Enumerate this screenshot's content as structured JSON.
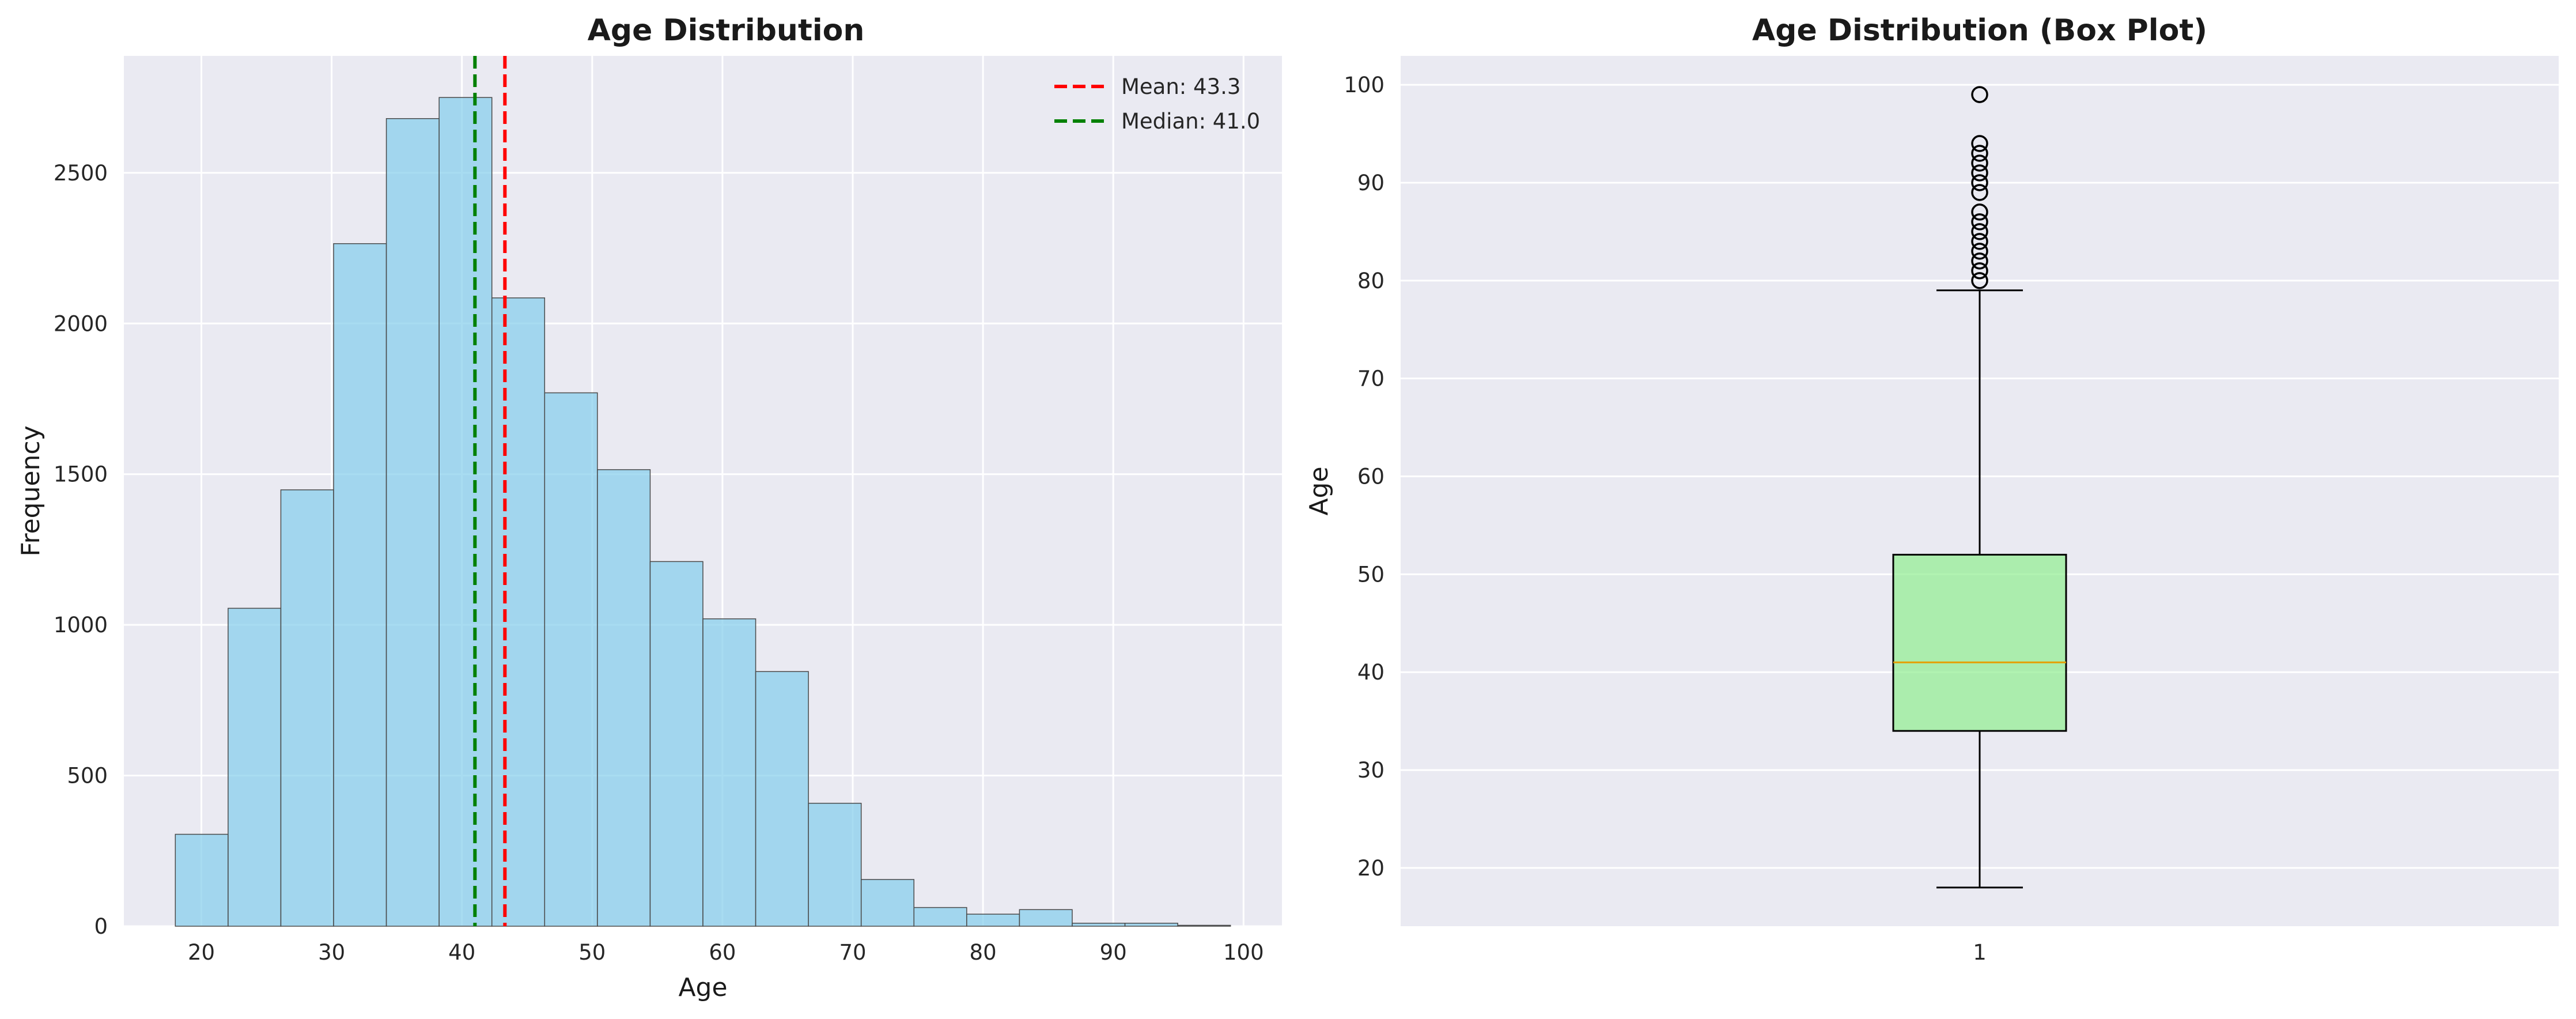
{
  "colors": {
    "panel_bg": "#EAEAF2",
    "grid": "#FFFFFF",
    "hist_fill": "#87CEEB",
    "hist_edge": "#4a4a4a",
    "mean_line": "#FF0000",
    "median_line": "#008000",
    "box_fill": "#90EE90",
    "box_median": "#E69F00",
    "box_edge": "#000000"
  },
  "chart_data": [
    {
      "type": "bar",
      "subtype": "histogram",
      "title": "Age Distribution",
      "xlabel": "Age",
      "ylabel": "Frequency",
      "xlim": [
        14.05,
        102.95
      ],
      "ylim": [
        0,
        2888
      ],
      "xticks": [
        20,
        30,
        40,
        50,
        60,
        70,
        80,
        90,
        100
      ],
      "yticks": [
        0,
        500,
        1000,
        1500,
        2000,
        2500
      ],
      "bin_edges": [
        18.0,
        22.05,
        26.1,
        30.15,
        34.2,
        38.25,
        42.3,
        46.35,
        50.4,
        54.45,
        58.5,
        62.55,
        66.6,
        70.65,
        74.7,
        78.75,
        82.8,
        86.85,
        90.9,
        94.95,
        99.0
      ],
      "values": [
        305,
        1055,
        1448,
        2265,
        2680,
        2750,
        2085,
        1770,
        1515,
        1210,
        1020,
        845,
        408,
        155,
        62,
        40,
        55,
        10,
        10,
        3
      ],
      "grid": true,
      "legend": {
        "placement": "upper right",
        "entries": [
          {
            "label": "Mean: 43.3",
            "value": 43.3,
            "color": "#FF0000",
            "style": "dashed"
          },
          {
            "label": "Median: 41.0",
            "value": 41.0,
            "color": "#008000",
            "style": "dashed"
          }
        ]
      }
    },
    {
      "type": "box",
      "title": "Age Distribution (Box Plot)",
      "xlabel": "",
      "ylabel": "Age",
      "ylim": [
        14.05,
        102.95
      ],
      "yticks": [
        20,
        30,
        40,
        50,
        60,
        70,
        80,
        90,
        100
      ],
      "categories": [
        "1"
      ],
      "box": {
        "whisker_low": 18,
        "q1": 34,
        "median": 41,
        "q3": 52,
        "whisker_high": 79,
        "outliers": [
          80,
          81,
          82,
          83,
          84,
          85,
          86,
          87,
          89,
          90,
          91,
          92,
          93,
          94,
          99
        ]
      },
      "grid": true
    }
  ]
}
